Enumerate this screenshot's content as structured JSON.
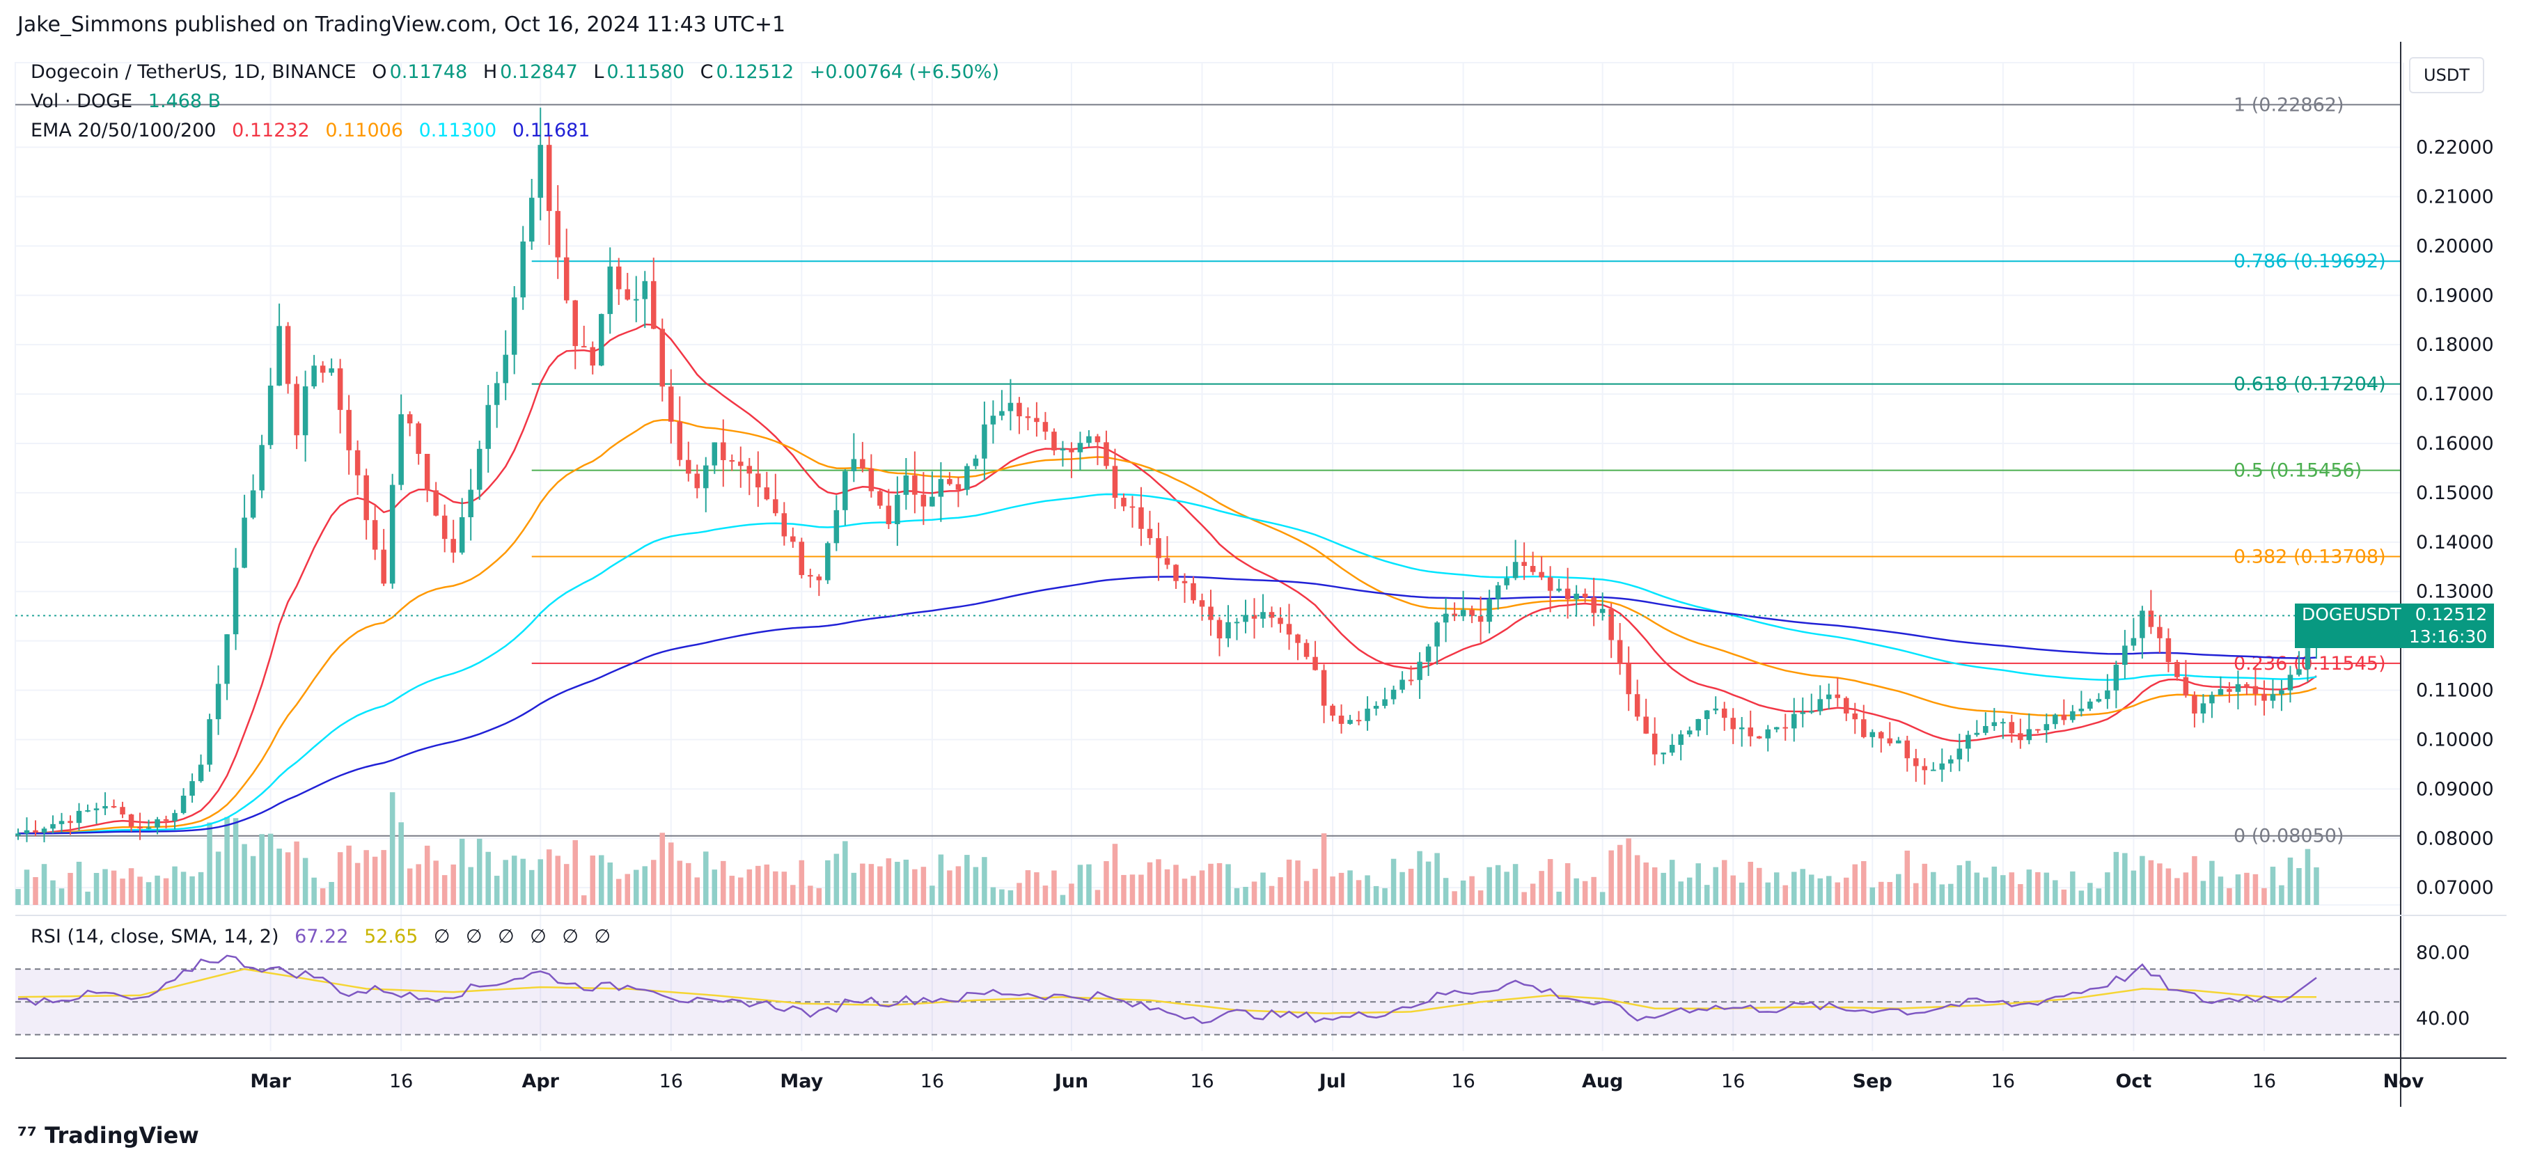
{
  "header": {
    "published": "Jake_Simmons published on TradingView.com, Oct 16, 2024 11:43 UTC+1"
  },
  "legend": {
    "title": "Dogecoin / TetherUS, 1D, BINANCE",
    "ohlc": {
      "o_label": "O",
      "o": "0.11748",
      "h_label": "H",
      "h": "0.12847",
      "l_label": "L",
      "l": "0.11580",
      "c_label": "C",
      "c": "0.12512",
      "change": "+0.00764 (+6.50%)"
    },
    "vol_label": "Vol · DOGE",
    "vol_value": "1.468 B",
    "ema_label": "EMA 20/50/100/200",
    "ema_values": [
      "0.11232",
      "0.11006",
      "0.11300",
      "0.11681"
    ],
    "ema_colors": [
      "#f23645",
      "#ff9800",
      "#00e5ff",
      "#2121d6"
    ]
  },
  "currency": "USDT",
  "price_tag": {
    "symbol": "DOGEUSDT",
    "price": "0.12512",
    "countdown": "13:16:30"
  },
  "rsi": {
    "label": "RSI (14, close, SMA, 14, 2)",
    "value": "67.22",
    "sma": "52.65",
    "placeholders": [
      "∅",
      "∅",
      "∅",
      "∅",
      "∅",
      "∅"
    ],
    "axis": [
      "80.00",
      "40.00"
    ]
  },
  "branding": "TradingView",
  "colors": {
    "up": "#26a69a",
    "down": "#ef5350",
    "vol_up": "#8fcfc8",
    "vol_down": "#f4a7a5",
    "rsi": "#7e57c2",
    "rsi_sma": "#f5d533"
  },
  "chart_data": {
    "type": "candlestick",
    "title": "Dogecoin / TetherUS, 1D, BINANCE",
    "y_axis_ticks": [
      "0.07000",
      "0.08000",
      "0.09000",
      "0.10000",
      "0.11000",
      "0.12000",
      "0.13000",
      "0.14000",
      "0.15000",
      "0.16000",
      "0.17000",
      "0.18000",
      "0.19000",
      "0.20000",
      "0.21000",
      "0.22000"
    ],
    "ylim": [
      0.0665,
      0.2315
    ],
    "x_axis_ticks": [
      "Mar",
      "16",
      "Apr",
      "16",
      "May",
      "16",
      "Jun",
      "16",
      "Jul",
      "16",
      "Aug",
      "16",
      "Sep",
      "16",
      "Oct",
      "16",
      "Nov"
    ],
    "x_tick_days": [
      29,
      44,
      60,
      75,
      90,
      105,
      121,
      136,
      151,
      166,
      182,
      197,
      213,
      228,
      243,
      258,
      274
    ],
    "fibonacci": [
      {
        "label": "1 (0.22862)",
        "price": 0.22862,
        "color": "#787b86"
      },
      {
        "label": "0.786 (0.19692)",
        "price": 0.19692,
        "color": "#00bcd4"
      },
      {
        "label": "0.618 (0.17204)",
        "price": 0.17204,
        "color": "#089981"
      },
      {
        "label": "0.5 (0.15456)",
        "price": 0.15456,
        "color": "#4caf50"
      },
      {
        "label": "0.382 (0.13708)",
        "price": 0.13708,
        "color": "#ff9800"
      },
      {
        "label": "0.236 (0.11545)",
        "price": 0.11545,
        "color": "#f23645"
      },
      {
        "label": "0 (0.08050)",
        "price": 0.0805,
        "color": "#787b86"
      }
    ],
    "last_price": 0.12512,
    "anchors": [
      [
        0,
        0.081
      ],
      [
        6,
        0.084
      ],
      [
        10,
        0.087
      ],
      [
        14,
        0.082
      ],
      [
        18,
        0.085
      ],
      [
        21,
        0.096
      ],
      [
        23,
        0.11
      ],
      [
        25,
        0.135
      ],
      [
        28,
        0.16
      ],
      [
        30,
        0.183
      ],
      [
        32,
        0.163
      ],
      [
        34,
        0.176
      ],
      [
        36,
        0.175
      ],
      [
        38,
        0.16
      ],
      [
        40,
        0.145
      ],
      [
        42,
        0.133
      ],
      [
        44,
        0.167
      ],
      [
        46,
        0.158
      ],
      [
        48,
        0.145
      ],
      [
        50,
        0.137
      ],
      [
        52,
        0.152
      ],
      [
        54,
        0.168
      ],
      [
        56,
        0.18
      ],
      [
        58,
        0.2
      ],
      [
        60,
        0.218
      ],
      [
        62,
        0.198
      ],
      [
        64,
        0.18
      ],
      [
        66,
        0.176
      ],
      [
        68,
        0.197
      ],
      [
        70,
        0.188
      ],
      [
        72,
        0.194
      ],
      [
        74,
        0.17
      ],
      [
        76,
        0.155
      ],
      [
        78,
        0.15
      ],
      [
        80,
        0.16
      ],
      [
        82,
        0.157
      ],
      [
        84,
        0.155
      ],
      [
        86,
        0.148
      ],
      [
        88,
        0.142
      ],
      [
        90,
        0.135
      ],
      [
        92,
        0.132
      ],
      [
        94,
        0.148
      ],
      [
        96,
        0.157
      ],
      [
        98,
        0.15
      ],
      [
        100,
        0.145
      ],
      [
        102,
        0.152
      ],
      [
        104,
        0.149
      ],
      [
        106,
        0.152
      ],
      [
        108,
        0.15
      ],
      [
        110,
        0.158
      ],
      [
        112,
        0.167
      ],
      [
        114,
        0.17
      ],
      [
        116,
        0.165
      ],
      [
        118,
        0.161
      ],
      [
        120,
        0.159
      ],
      [
        122,
        0.161
      ],
      [
        124,
        0.162
      ],
      [
        126,
        0.15
      ],
      [
        128,
        0.146
      ],
      [
        130,
        0.142
      ],
      [
        132,
        0.135
      ],
      [
        134,
        0.132
      ],
      [
        136,
        0.127
      ],
      [
        138,
        0.122
      ],
      [
        140,
        0.124
      ],
      [
        142,
        0.125
      ],
      [
        144,
        0.124
      ],
      [
        146,
        0.122
      ],
      [
        148,
        0.118
      ],
      [
        150,
        0.108
      ],
      [
        152,
        0.104
      ],
      [
        154,
        0.105
      ],
      [
        156,
        0.107
      ],
      [
        158,
        0.11
      ],
      [
        160,
        0.112
      ],
      [
        162,
        0.12
      ],
      [
        164,
        0.125
      ],
      [
        166,
        0.125
      ],
      [
        168,
        0.124
      ],
      [
        170,
        0.13
      ],
      [
        172,
        0.136
      ],
      [
        174,
        0.133
      ],
      [
        176,
        0.13
      ],
      [
        178,
        0.128
      ],
      [
        180,
        0.129
      ],
      [
        182,
        0.125
      ],
      [
        184,
        0.115
      ],
      [
        186,
        0.104
      ],
      [
        188,
        0.097
      ],
      [
        190,
        0.098
      ],
      [
        192,
        0.103
      ],
      [
        194,
        0.106
      ],
      [
        196,
        0.104
      ],
      [
        198,
        0.102
      ],
      [
        200,
        0.101
      ],
      [
        202,
        0.103
      ],
      [
        204,
        0.104
      ],
      [
        206,
        0.107
      ],
      [
        208,
        0.11
      ],
      [
        210,
        0.106
      ],
      [
        212,
        0.101
      ],
      [
        214,
        0.1
      ],
      [
        216,
        0.099
      ],
      [
        218,
        0.095
      ],
      [
        220,
        0.093
      ],
      [
        222,
        0.097
      ],
      [
        224,
        0.101
      ],
      [
        226,
        0.103
      ],
      [
        228,
        0.104
      ],
      [
        230,
        0.101
      ],
      [
        232,
        0.102
      ],
      [
        234,
        0.104
      ],
      [
        236,
        0.106
      ],
      [
        238,
        0.108
      ],
      [
        240,
        0.111
      ],
      [
        242,
        0.118
      ],
      [
        244,
        0.126
      ],
      [
        246,
        0.121
      ],
      [
        248,
        0.112
      ],
      [
        250,
        0.106
      ],
      [
        252,
        0.108
      ],
      [
        254,
        0.11
      ],
      [
        256,
        0.11
      ],
      [
        258,
        0.109
      ],
      [
        260,
        0.111
      ],
      [
        262,
        0.114
      ],
      [
        263,
        0.118
      ],
      [
        264,
        0.1251
      ]
    ],
    "rsi_anchors": [
      [
        0,
        50
      ],
      [
        10,
        55
      ],
      [
        14,
        50
      ],
      [
        18,
        62
      ],
      [
        21,
        75
      ],
      [
        24,
        77
      ],
      [
        27,
        72
      ],
      [
        30,
        69
      ],
      [
        34,
        66
      ],
      [
        38,
        55
      ],
      [
        42,
        58
      ],
      [
        46,
        52
      ],
      [
        50,
        55
      ],
      [
        55,
        62
      ],
      [
        60,
        68
      ],
      [
        64,
        60
      ],
      [
        68,
        59
      ],
      [
        72,
        60
      ],
      [
        76,
        52
      ],
      [
        80,
        48
      ],
      [
        84,
        50
      ],
      [
        88,
        47
      ],
      [
        92,
        42
      ],
      [
        96,
        52
      ],
      [
        100,
        50
      ],
      [
        104,
        52
      ],
      [
        108,
        52
      ],
      [
        112,
        56
      ],
      [
        116,
        55
      ],
      [
        120,
        53
      ],
      [
        124,
        54
      ],
      [
        128,
        48
      ],
      [
        132,
        44
      ],
      [
        136,
        40
      ],
      [
        140,
        43
      ],
      [
        144,
        42
      ],
      [
        148,
        41
      ],
      [
        152,
        40
      ],
      [
        156,
        43
      ],
      [
        160,
        48
      ],
      [
        164,
        55
      ],
      [
        168,
        57
      ],
      [
        172,
        62
      ],
      [
        176,
        56
      ],
      [
        180,
        50
      ],
      [
        184,
        46
      ],
      [
        187,
        38
      ],
      [
        190,
        45
      ],
      [
        194,
        47
      ],
      [
        198,
        46
      ],
      [
        202,
        46
      ],
      [
        206,
        48
      ],
      [
        210,
        45
      ],
      [
        214,
        46
      ],
      [
        218,
        44
      ],
      [
        222,
        48
      ],
      [
        226,
        50
      ],
      [
        230,
        48
      ],
      [
        234,
        53
      ],
      [
        238,
        58
      ],
      [
        242,
        65
      ],
      [
        244,
        70
      ],
      [
        246,
        63
      ],
      [
        248,
        56
      ],
      [
        252,
        50
      ],
      [
        256,
        53
      ],
      [
        260,
        52
      ],
      [
        262,
        58
      ],
      [
        264,
        67
      ]
    ],
    "rsi_sma_anchors": [
      [
        0,
        53
      ],
      [
        14,
        54
      ],
      [
        20,
        62
      ],
      [
        26,
        70
      ],
      [
        32,
        65
      ],
      [
        40,
        58
      ],
      [
        50,
        56
      ],
      [
        60,
        59
      ],
      [
        70,
        58
      ],
      [
        80,
        54
      ],
      [
        90,
        49
      ],
      [
        100,
        48
      ],
      [
        110,
        51
      ],
      [
        120,
        53
      ],
      [
        130,
        51
      ],
      [
        140,
        45
      ],
      [
        150,
        43
      ],
      [
        160,
        44
      ],
      [
        168,
        50
      ],
      [
        176,
        54
      ],
      [
        182,
        52
      ],
      [
        188,
        46
      ],
      [
        196,
        46
      ],
      [
        206,
        47
      ],
      [
        216,
        46
      ],
      [
        226,
        48
      ],
      [
        236,
        52
      ],
      [
        244,
        58
      ],
      [
        250,
        57
      ],
      [
        258,
        53
      ],
      [
        264,
        53
      ]
    ]
  }
}
